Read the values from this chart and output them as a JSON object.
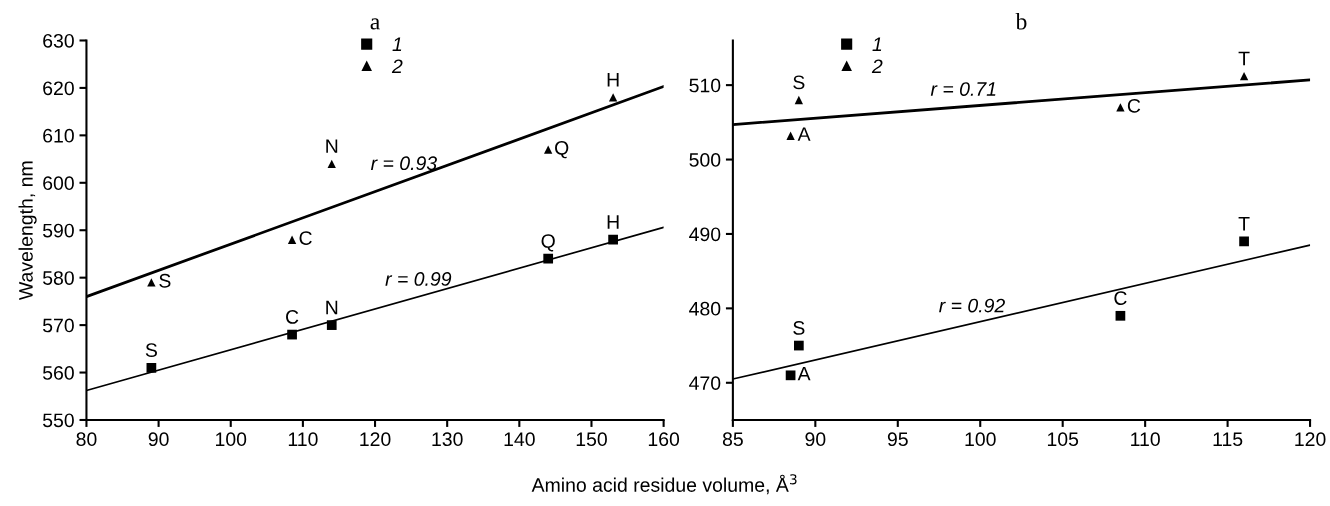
{
  "chart_data": [
    {
      "type": "scatter",
      "title": "a",
      "xlabel": "Amino acid residue volume, Å$^{3}$",
      "ylabel": "Wavelength, nm",
      "xlim": [
        80,
        160
      ],
      "xticks": [
        80,
        90,
        100,
        110,
        120,
        130,
        140,
        150,
        160
      ],
      "ylim": [
        550,
        630
      ],
      "yticks": [
        550,
        560,
        570,
        580,
        590,
        600,
        610,
        620,
        630
      ],
      "grid": false,
      "legend": "top",
      "series": [
        {
          "name": "1",
          "color": "#000000",
          "marker": "square",
          "x": [
            89,
            108.5,
            114,
            144,
            153
          ],
          "values": [
            561,
            568,
            570,
            584,
            588
          ]
        },
        {
          "name": "2",
          "color": "#000000",
          "marker": "triangle",
          "x": [
            89,
            108.5,
            114,
            144,
            153
          ],
          "values": [
            579,
            588,
            604,
            607,
            618
          ]
        },
        {
          "type": "line",
          "color": "#000000",
          "x": [
            80,
            160
          ],
          "values": [
            556.2,
            590.6
          ]
        },
        {
          "type": "line",
          "color": "#000000",
          "x": [
            80,
            160
          ],
          "values": [
            576,
            620.3
          ]
        }
      ],
      "annotations": [
        {
          "text": "S",
          "x": 89,
          "y": 561
        },
        {
          "text": "C",
          "x": 108.5,
          "y": 568
        },
        {
          "text": "N",
          "x": 114,
          "y": 570
        },
        {
          "text": "Q",
          "x": 144,
          "y": 584
        },
        {
          "text": "H",
          "x": 153,
          "y": 588
        },
        {
          "text": "S",
          "x": 89,
          "y": 579
        },
        {
          "text": "C",
          "x": 108.5,
          "y": 588
        },
        {
          "text": "N",
          "x": 114,
          "y": 604
        },
        {
          "text": "Q",
          "x": 144,
          "y": 607
        },
        {
          "text": "H",
          "x": 153,
          "y": 618
        },
        {
          "text": "r = 0.93",
          "x": 124,
          "y": 600.4
        },
        {
          "text": "r = 0.99",
          "x": 126,
          "y": 576
        }
      ]
    },
    {
      "type": "scatter",
      "title": "b",
      "xlim": [
        85,
        120
      ],
      "xticks": [
        85,
        90,
        95,
        100,
        105,
        110,
        115,
        120
      ],
      "ylim": [
        465,
        516
      ],
      "yticks": [
        470,
        480,
        490,
        500,
        510
      ],
      "grid": false,
      "legend": "top left",
      "series": [
        {
          "name": "1",
          "color": "#000000",
          "marker": "square",
          "x": [
            88.5,
            89,
            108.5,
            116
          ],
          "values": [
            471,
            475,
            479,
            489
          ]
        },
        {
          "name": "2",
          "color": "#000000",
          "marker": "triangle",
          "x": [
            88.5,
            89,
            108.5,
            116
          ],
          "values": [
            503.2,
            508,
            507,
            511.2
          ]
        },
        {
          "type": "line",
          "color": "#000000",
          "x": [
            85,
            120
          ],
          "values": [
            470.5,
            488.5
          ]
        },
        {
          "type": "line",
          "color": "#000000",
          "x": [
            85,
            120
          ],
          "values": [
            504.7,
            510.7
          ]
        }
      ],
      "annotations": [
        {
          "text": "A",
          "x": 88.5,
          "y": 471
        },
        {
          "text": "S",
          "x": 89,
          "y": 475
        },
        {
          "text": "C",
          "x": 108.5,
          "y": 479
        },
        {
          "text": "T",
          "x": 116,
          "y": 489
        },
        {
          "text": "A",
          "x": 88.5,
          "y": 503.2
        },
        {
          "text": "S",
          "x": 89,
          "y": 508
        },
        {
          "text": "C",
          "x": 108.5,
          "y": 507
        },
        {
          "text": "T",
          "x": 116,
          "y": 511.2
        },
        {
          "text": "r = 0.71",
          "x": 99,
          "y": 507.1
        },
        {
          "text": "r = 0.92",
          "x": 99.5,
          "y": 478
        }
      ]
    }
  ]
}
